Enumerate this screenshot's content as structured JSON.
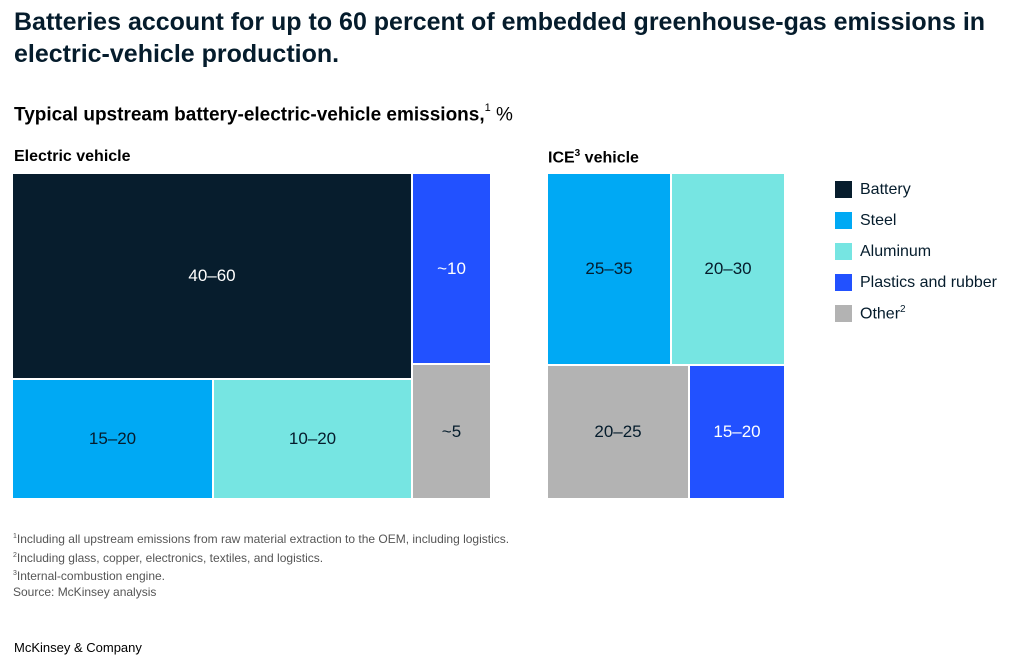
{
  "title": "Batteries account for up to 60 percent of embedded greenhouse-gas emissions in electric-vehicle production.",
  "subtitle": {
    "text": "Typical upstream battery-electric-vehicle emissions,",
    "sup": "1",
    "unit": "%"
  },
  "panels": {
    "ev_label": "Electric vehicle",
    "ice_label_main": "ICE",
    "ice_label_sup": "3",
    "ice_label_rest": " vehicle"
  },
  "colors": {
    "battery": "#071d2d",
    "steel": "#00a9f4",
    "aluminum": "#76e5e2",
    "plastics": "#2251ff",
    "other": "#b3b3b3"
  },
  "legend": [
    {
      "key": "battery",
      "label": "Battery",
      "sup": ""
    },
    {
      "key": "steel",
      "label": "Steel",
      "sup": ""
    },
    {
      "key": "aluminum",
      "label": "Aluminum",
      "sup": ""
    },
    {
      "key": "plastics",
      "label": "Plastics and rubber",
      "sup": ""
    },
    {
      "key": "other",
      "label": "Other",
      "sup": "2"
    }
  ],
  "chart_data": [
    {
      "type": "treemap",
      "title": "Electric vehicle",
      "unit": "%",
      "cells": [
        {
          "category": "Battery",
          "label": "40–60",
          "low": 40,
          "high": 60
        },
        {
          "category": "Plastics and rubber",
          "label": "~10",
          "value": 10
        },
        {
          "category": "Steel",
          "label": "15–20",
          "low": 15,
          "high": 20
        },
        {
          "category": "Aluminum",
          "label": "10–20",
          "low": 10,
          "high": 20
        },
        {
          "category": "Other",
          "label": "~5",
          "value": 5
        }
      ]
    },
    {
      "type": "treemap",
      "title": "ICE vehicle",
      "unit": "%",
      "cells": [
        {
          "category": "Steel",
          "label": "25–35",
          "low": 25,
          "high": 35
        },
        {
          "category": "Aluminum",
          "label": "20–30",
          "low": 20,
          "high": 30
        },
        {
          "category": "Other",
          "label": "20–25",
          "low": 20,
          "high": 25
        },
        {
          "category": "Plastics and rubber",
          "label": "15–20",
          "low": 15,
          "high": 20
        }
      ]
    }
  ],
  "footnotes": [
    {
      "sup": "1",
      "text": "Including all upstream emissions from raw material extraction to the OEM, including logistics."
    },
    {
      "sup": "2",
      "text": "Including glass, copper, electronics, textiles, and logistics."
    },
    {
      "sup": "3",
      "text": "Internal-combustion engine."
    },
    {
      "sup": "",
      "text": " Source: McKinsey analysis"
    }
  ],
  "brand": "McKinsey & Company"
}
